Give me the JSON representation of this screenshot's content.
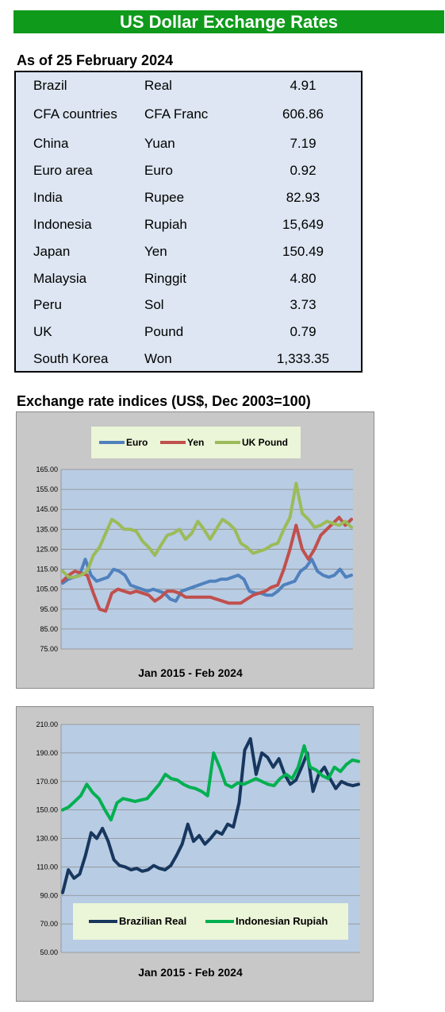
{
  "header": {
    "title": "US Dollar Exchange Rates"
  },
  "rates": {
    "as_of": "As of 25 February 2024",
    "rows": [
      {
        "country": "Brazil",
        "currency": "Real",
        "value": "4.91"
      },
      {
        "country": "CFA countries",
        "currency": "CFA Franc",
        "value": "606.86"
      },
      {
        "country": "China",
        "currency": "Yuan",
        "value": "7.19"
      },
      {
        "country": "Euro area",
        "currency": "Euro",
        "value": "0.92"
      },
      {
        "country": "India",
        "currency": "Rupee",
        "value": "82.93"
      },
      {
        "country": "Indonesia",
        "currency": "Rupiah",
        "value": "15,649"
      },
      {
        "country": "Japan",
        "currency": "Yen",
        "value": "150.49"
      },
      {
        "country": "Malaysia",
        "currency": "Ringgit",
        "value": "4.80"
      },
      {
        "country": "Peru",
        "currency": "Sol",
        "value": "3.73"
      },
      {
        "country": "UK",
        "currency": "Pound",
        "value": "0.79"
      },
      {
        "country": "South Korea",
        "currency": "Won",
        "value": "1,333.35"
      }
    ]
  },
  "indices_title": "Exchange rate indices (US$, Dec 2003=100)",
  "chart_data": [
    {
      "type": "line",
      "xlabel": "Jan 2015 - Feb 2024",
      "ylabel": "",
      "ylim": [
        75,
        165
      ],
      "yticks": [
        "75.00",
        "85.00",
        "95.00",
        "105.00",
        "115.00",
        "125.00",
        "135.00",
        "145.00",
        "155.00",
        "165.00"
      ],
      "grid": true,
      "legend": "top",
      "series": [
        {
          "name": "Euro",
          "color": "#4f81bd",
          "values": [
            108,
            110,
            111,
            112,
            120,
            112,
            109,
            110,
            111,
            115,
            114,
            112,
            107,
            106,
            105,
            104,
            105,
            104,
            103,
            100,
            99,
            104,
            105,
            106,
            107,
            108,
            109,
            109,
            110,
            110,
            111,
            112,
            110,
            104,
            103,
            103,
            102,
            102,
            104,
            107,
            108,
            109,
            114,
            116,
            120,
            114,
            112,
            111,
            112,
            115,
            111,
            112
          ]
        },
        {
          "name": "Yen",
          "color": "#c0504d",
          "values": [
            109,
            112,
            114,
            113,
            112,
            103,
            95,
            94,
            103,
            105,
            104,
            103,
            104,
            103,
            102,
            99,
            101,
            104,
            104,
            103,
            101,
            101,
            101,
            101,
            101,
            100,
            99,
            98,
            98,
            98,
            100,
            102,
            103,
            104,
            106,
            107,
            115,
            125,
            137,
            125,
            120,
            125,
            132,
            135,
            138,
            141,
            137,
            140
          ]
        },
        {
          "name": "UK Pound",
          "color": "#9bbb59",
          "values": [
            114,
            111,
            111,
            112,
            114,
            122,
            126,
            133,
            140,
            138,
            135,
            135,
            134,
            129,
            126,
            122,
            127,
            132,
            133,
            135,
            130,
            133,
            139,
            135,
            130,
            135,
            140,
            138,
            135,
            128,
            126,
            123,
            124,
            125,
            127,
            128,
            135,
            141,
            158,
            143,
            140,
            136,
            137,
            139,
            138,
            137,
            139,
            136
          ]
        }
      ]
    },
    {
      "type": "line",
      "xlabel": "Jan 2015 - Feb 2024",
      "ylabel": "",
      "ylim": [
        50,
        210
      ],
      "yticks": [
        "50.00",
        "70.00",
        "90.00",
        "110.00",
        "130.00",
        "150.00",
        "170.00",
        "190.00",
        "210.00"
      ],
      "grid": true,
      "legend": "bottom",
      "series": [
        {
          "name": "Brazilian Real",
          "color": "#17375e",
          "values": [
            92,
            108,
            102,
            105,
            118,
            134,
            130,
            137,
            128,
            115,
            111,
            110,
            108,
            109,
            107,
            108,
            111,
            109,
            108,
            111,
            118,
            126,
            140,
            128,
            132,
            126,
            130,
            135,
            133,
            140,
            138,
            155,
            192,
            200,
            175,
            190,
            187,
            180,
            186,
            175,
            168,
            171,
            180,
            190,
            163,
            175,
            180,
            172,
            165,
            170,
            168,
            167,
            168
          ]
        },
        {
          "name": "Indonesian Rupiah",
          "color": "#00b050",
          "values": [
            150,
            152,
            156,
            160,
            168,
            162,
            158,
            150,
            143,
            155,
            158,
            157,
            156,
            157,
            158,
            163,
            168,
            175,
            172,
            171,
            168,
            166,
            165,
            163,
            160,
            190,
            180,
            168,
            166,
            169,
            168,
            170,
            172,
            170,
            168,
            167,
            172,
            175,
            172,
            180,
            195,
            180,
            178,
            174,
            172,
            180,
            177,
            182,
            185,
            184
          ]
        }
      ]
    }
  ]
}
